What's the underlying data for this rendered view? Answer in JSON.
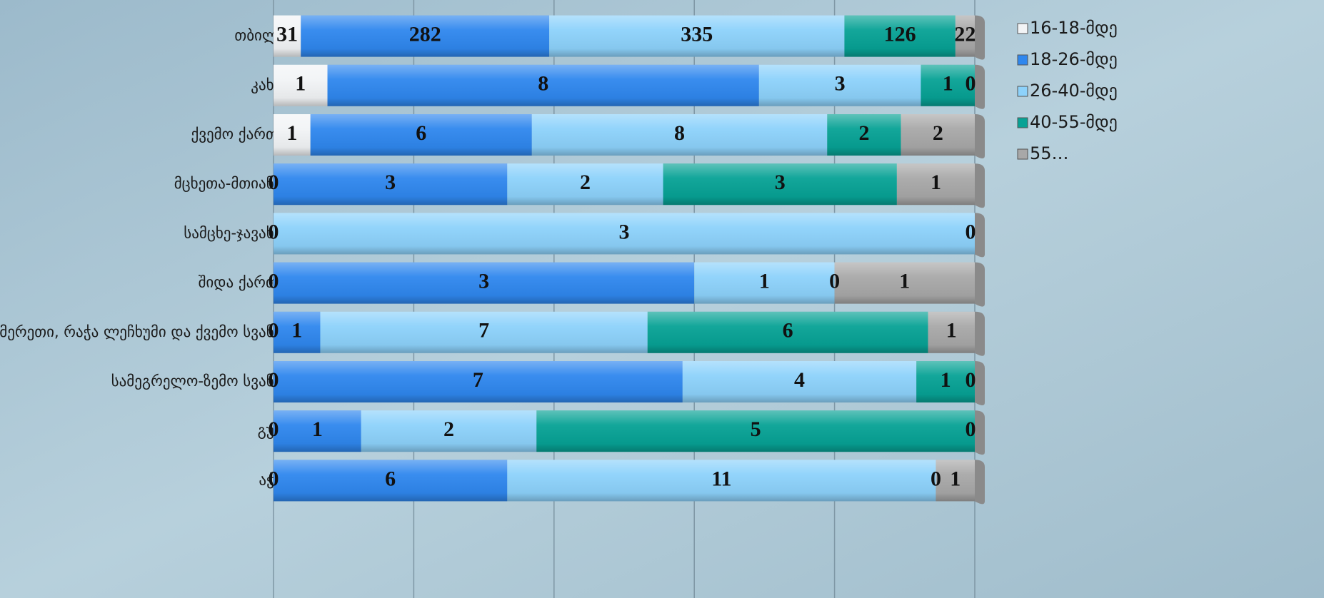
{
  "chart_data": {
    "type": "stacked-bar-100",
    "categories": [
      "თბილისი",
      "კახეთი",
      "ქვემო ქართლი",
      "მცხეთა-მთიანეთი",
      "სამცხე-ჯავახეთი",
      "შიდა ქართლი",
      "იმერეთი, რაჭა ლეჩხუმი და ქვემო სვანეთი",
      "სამეგრელო-ზემო სვანეთი",
      "გურია",
      "აჭარა"
    ],
    "series": [
      {
        "name": "16-18-მდე",
        "color": "#f2f4f6",
        "values": [
          31,
          1,
          1,
          0,
          0,
          0,
          0,
          0,
          0,
          0
        ]
      },
      {
        "name": "18-26-მდე",
        "color": "#2f87ee",
        "values": [
          282,
          8,
          6,
          3,
          null,
          3,
          1,
          7,
          1,
          6
        ]
      },
      {
        "name": "26-40-მდე",
        "color": "#8dd2fb",
        "values": [
          335,
          3,
          8,
          2,
          3,
          1,
          7,
          4,
          2,
          11
        ]
      },
      {
        "name": "40-55-მდე",
        "color": "#07a295",
        "values": [
          126,
          1,
          2,
          3,
          null,
          0,
          6,
          1,
          5,
          0
        ]
      },
      {
        "name": "55…",
        "color": "#a8a8a8",
        "values": [
          22,
          0,
          2,
          1,
          0,
          1,
          1,
          0,
          0,
          1
        ]
      }
    ],
    "xlim": [
      0,
      100
    ],
    "xticks": [
      0,
      20,
      40,
      60,
      80,
      100
    ],
    "grid": true,
    "legend": "right"
  }
}
